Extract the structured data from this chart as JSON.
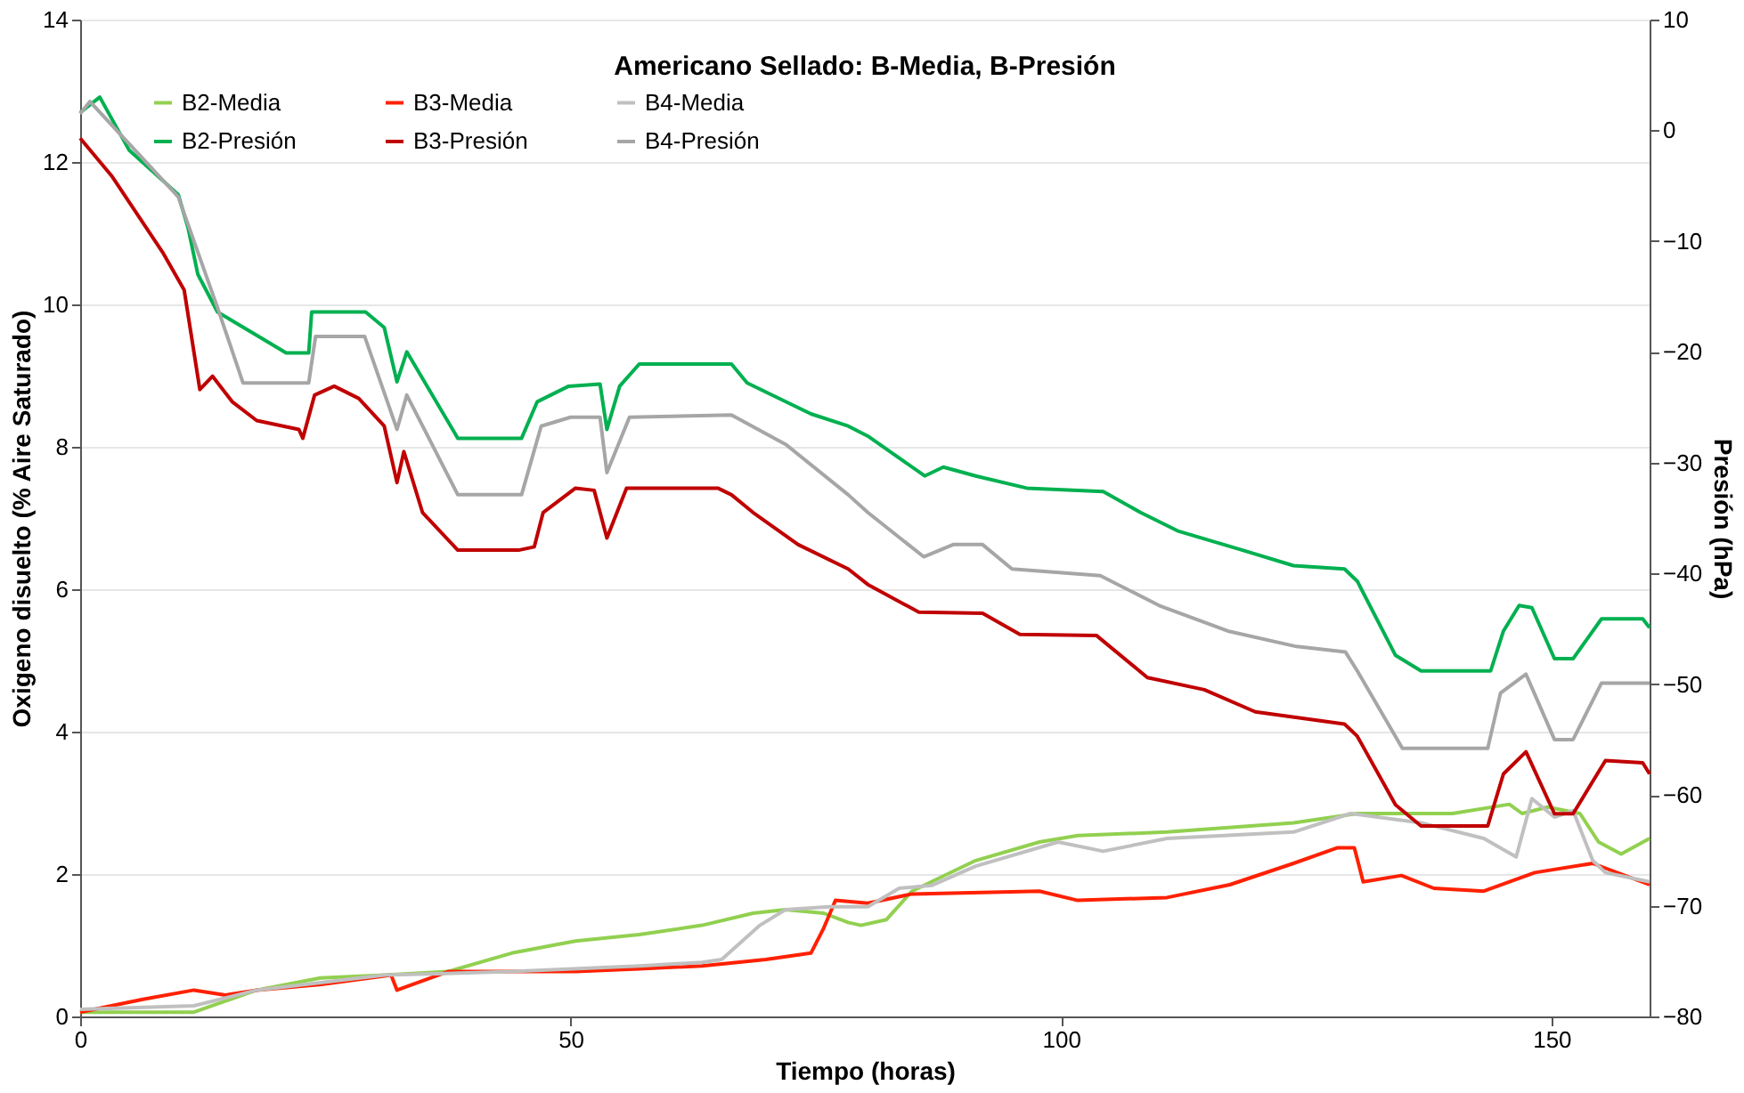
{
  "chart_data": {
    "type": "line",
    "title": "Americano Sellado: B-Media, B-Presión",
    "xlabel": "Tiempo (horas)",
    "ylabel": "Oxigeno disuelto (% Aire Saturado)",
    "y2label": "Presión (hPa)",
    "xlim": [
      0,
      160
    ],
    "xticks": [
      0,
      50,
      100,
      150
    ],
    "ylim": [
      0,
      14
    ],
    "yticks": [
      0,
      2,
      4,
      6,
      8,
      10,
      12,
      14
    ],
    "y2lim": [
      -80,
      10
    ],
    "y2ticks": [
      -80,
      -70,
      -60,
      -50,
      -40,
      -30,
      -20,
      -10,
      0,
      10
    ],
    "grid": "y",
    "legend": "top left",
    "line_style": "solid",
    "series": [
      {
        "name": "B2-Media",
        "color": "#92d050",
        "x": [
          0,
          11.6,
          18,
          24.5,
          31,
          37.5,
          44,
          50.5,
          57,
          63.4,
          68.6,
          71.9,
          75.8,
          78.3,
          79.6,
          82.2,
          84.8,
          91.3,
          97.8,
          101.7,
          110.8,
          123.7,
          130.2,
          139.9,
          145.7,
          147,
          149.6,
          152.9,
          154.8,
          157.1,
          160
        ],
        "values": [
          0.06,
          0.06,
          0.37,
          0.54,
          0.58,
          0.63,
          0.89,
          1.06,
          1.15,
          1.28,
          1.45,
          1.5,
          1.45,
          1.32,
          1.28,
          1.36,
          1.76,
          2.19,
          2.45,
          2.54,
          2.59,
          2.72,
          2.85,
          2.85,
          2.98,
          2.85,
          2.94,
          2.85,
          2.45,
          2.28,
          2.5
        ]
      },
      {
        "name": "B3-Media",
        "color": "#ff2000",
        "x": [
          0,
          6.4,
          11.6,
          14.8,
          18,
          24.6,
          31.7,
          32.3,
          37.5,
          50.5,
          57,
          63.4,
          69.9,
          74.5,
          75.8,
          77,
          80.3,
          84.8,
          97.8,
          101.7,
          110.8,
          117.2,
          123.7,
          128.2,
          129.9,
          130.8,
          134.7,
          138,
          143.1,
          148.3,
          154.2,
          160
        ],
        "values": [
          0.06,
          0.24,
          0.37,
          0.3,
          0.37,
          0.45,
          0.58,
          0.37,
          0.63,
          0.63,
          0.67,
          0.71,
          0.8,
          0.89,
          1.24,
          1.63,
          1.59,
          1.72,
          1.76,
          1.63,
          1.67,
          1.85,
          2.15,
          2.37,
          2.37,
          1.89,
          1.98,
          1.8,
          1.76,
          2.02,
          2.15,
          1.85
        ]
      },
      {
        "name": "B4-Media",
        "color": "#c0c0c0",
        "x": [
          0,
          11.6,
          18,
          31,
          44,
          57,
          63.4,
          65.4,
          69.3,
          71.9,
          76.4,
          80.3,
          83.5,
          86.8,
          91.3,
          99.7,
          104.3,
          110.8,
          123.7,
          129.5,
          136.7,
          143.1,
          146.4,
          148,
          150.3,
          152.2,
          154.2,
          155.5,
          160
        ],
        "values": [
          0.1,
          0.15,
          0.37,
          0.58,
          0.63,
          0.71,
          0.76,
          0.8,
          1.28,
          1.5,
          1.54,
          1.54,
          1.8,
          1.84,
          2.11,
          2.45,
          2.32,
          2.5,
          2.59,
          2.85,
          2.72,
          2.5,
          2.24,
          3.06,
          2.8,
          2.89,
          2.19,
          2.02,
          1.89
        ]
      },
      {
        "name": "B2-Presión",
        "color": "#00b050",
        "axis": "y2",
        "x": [
          0,
          2,
          5,
          10,
          11,
          12,
          14,
          18,
          21,
          23.3,
          23.6,
          29.1,
          31,
          32.3,
          33.3,
          38.5,
          45,
          46.6,
          49.8,
          53,
          53.7,
          55,
          57,
          66.4,
          68,
          74.5,
          78.3,
          80.3,
          86.1,
          88,
          91.3,
          96.5,
          104.3,
          108.1,
          112,
          118.5,
          123.7,
          128.9,
          130.2,
          134.1,
          136.7,
          143.8,
          145.1,
          146.7,
          148,
          150.3,
          152.2,
          155.1,
          159.3,
          160
        ],
        "values": [
          1.6,
          3.0,
          -1.8,
          -5.8,
          -8.8,
          -13.0,
          -16.4,
          -18.5,
          -20.1,
          -20.1,
          -16.4,
          -16.4,
          -17.8,
          -22.7,
          -20.0,
          -27.8,
          -27.8,
          -24.5,
          -23.1,
          -22.9,
          -27.0,
          -23.1,
          -21.1,
          -21.1,
          -22.8,
          -25.6,
          -26.7,
          -27.6,
          -31.2,
          -30.4,
          -31.2,
          -32.3,
          -32.6,
          -34.5,
          -36.2,
          -37.9,
          -39.3,
          -39.6,
          -40.7,
          -47.4,
          -48.8,
          -48.8,
          -45.2,
          -42.9,
          -43.1,
          -47.7,
          -47.7,
          -44.1,
          -44.1,
          -44.9
        ]
      },
      {
        "name": "B3-Presión",
        "color": "#c00000",
        "axis": "y2",
        "x": [
          0,
          3.2,
          8.4,
          10.6,
          12.2,
          13.5,
          15.5,
          18,
          22.3,
          22.7,
          23.9,
          25.9,
          28.4,
          31,
          32.3,
          33,
          34.9,
          38.5,
          44.7,
          46.3,
          47.2,
          50.5,
          52.4,
          53.7,
          55.7,
          65,
          66.4,
          68.6,
          73.2,
          78.3,
          80.3,
          85.5,
          92,
          95.8,
          103.6,
          108.8,
          114.6,
          119.8,
          128.9,
          130.2,
          134.1,
          136.7,
          143.5,
          145.1,
          147.4,
          150.3,
          152.2,
          155.5,
          159.3,
          160
        ],
        "values": [
          -0.7,
          -4.1,
          -11.0,
          -14.4,
          -23.4,
          -22.2,
          -24.5,
          -26.2,
          -27.0,
          -27.8,
          -23.9,
          -23.1,
          -24.2,
          -26.7,
          -31.8,
          -29.0,
          -34.5,
          -37.9,
          -37.9,
          -37.6,
          -34.5,
          -32.3,
          -32.5,
          -36.8,
          -32.3,
          -32.3,
          -32.9,
          -34.5,
          -37.4,
          -39.6,
          -41.0,
          -43.5,
          -43.6,
          -45.5,
          -45.6,
          -49.4,
          -50.5,
          -52.5,
          -53.6,
          -54.7,
          -60.9,
          -62.8,
          -62.8,
          -58.1,
          -56.1,
          -61.7,
          -61.7,
          -56.9,
          -57.1,
          -58.1
        ]
      },
      {
        "name": "B4-Presión",
        "color": "#a6a6a6",
        "axis": "y2",
        "x": [
          0,
          1,
          10,
          14,
          16.6,
          23.3,
          24,
          29,
          32.3,
          33.3,
          38.5,
          45,
          47,
          50,
          53,
          53.7,
          56,
          66.4,
          72,
          78.3,
          80.3,
          86,
          89,
          92,
          95,
          104,
          110,
          117,
          124,
          129,
          130.2,
          134.8,
          143.5,
          144.8,
          147.4,
          150.3,
          152.2,
          155.1,
          160
        ],
        "values": [
          1.5,
          2.6,
          -6.0,
          -16.0,
          -22.8,
          -22.8,
          -18.6,
          -18.6,
          -27.0,
          -23.9,
          -32.9,
          -32.9,
          -26.7,
          -25.9,
          -25.9,
          -30.9,
          -25.9,
          -25.7,
          -28.4,
          -32.9,
          -34.5,
          -38.5,
          -37.4,
          -37.4,
          -39.6,
          -40.2,
          -42.9,
          -45.2,
          -46.6,
          -47.1,
          -48.8,
          -55.8,
          -55.8,
          -50.8,
          -49.1,
          -55.0,
          -55.0,
          -49.9,
          -49.9
        ]
      }
    ]
  }
}
